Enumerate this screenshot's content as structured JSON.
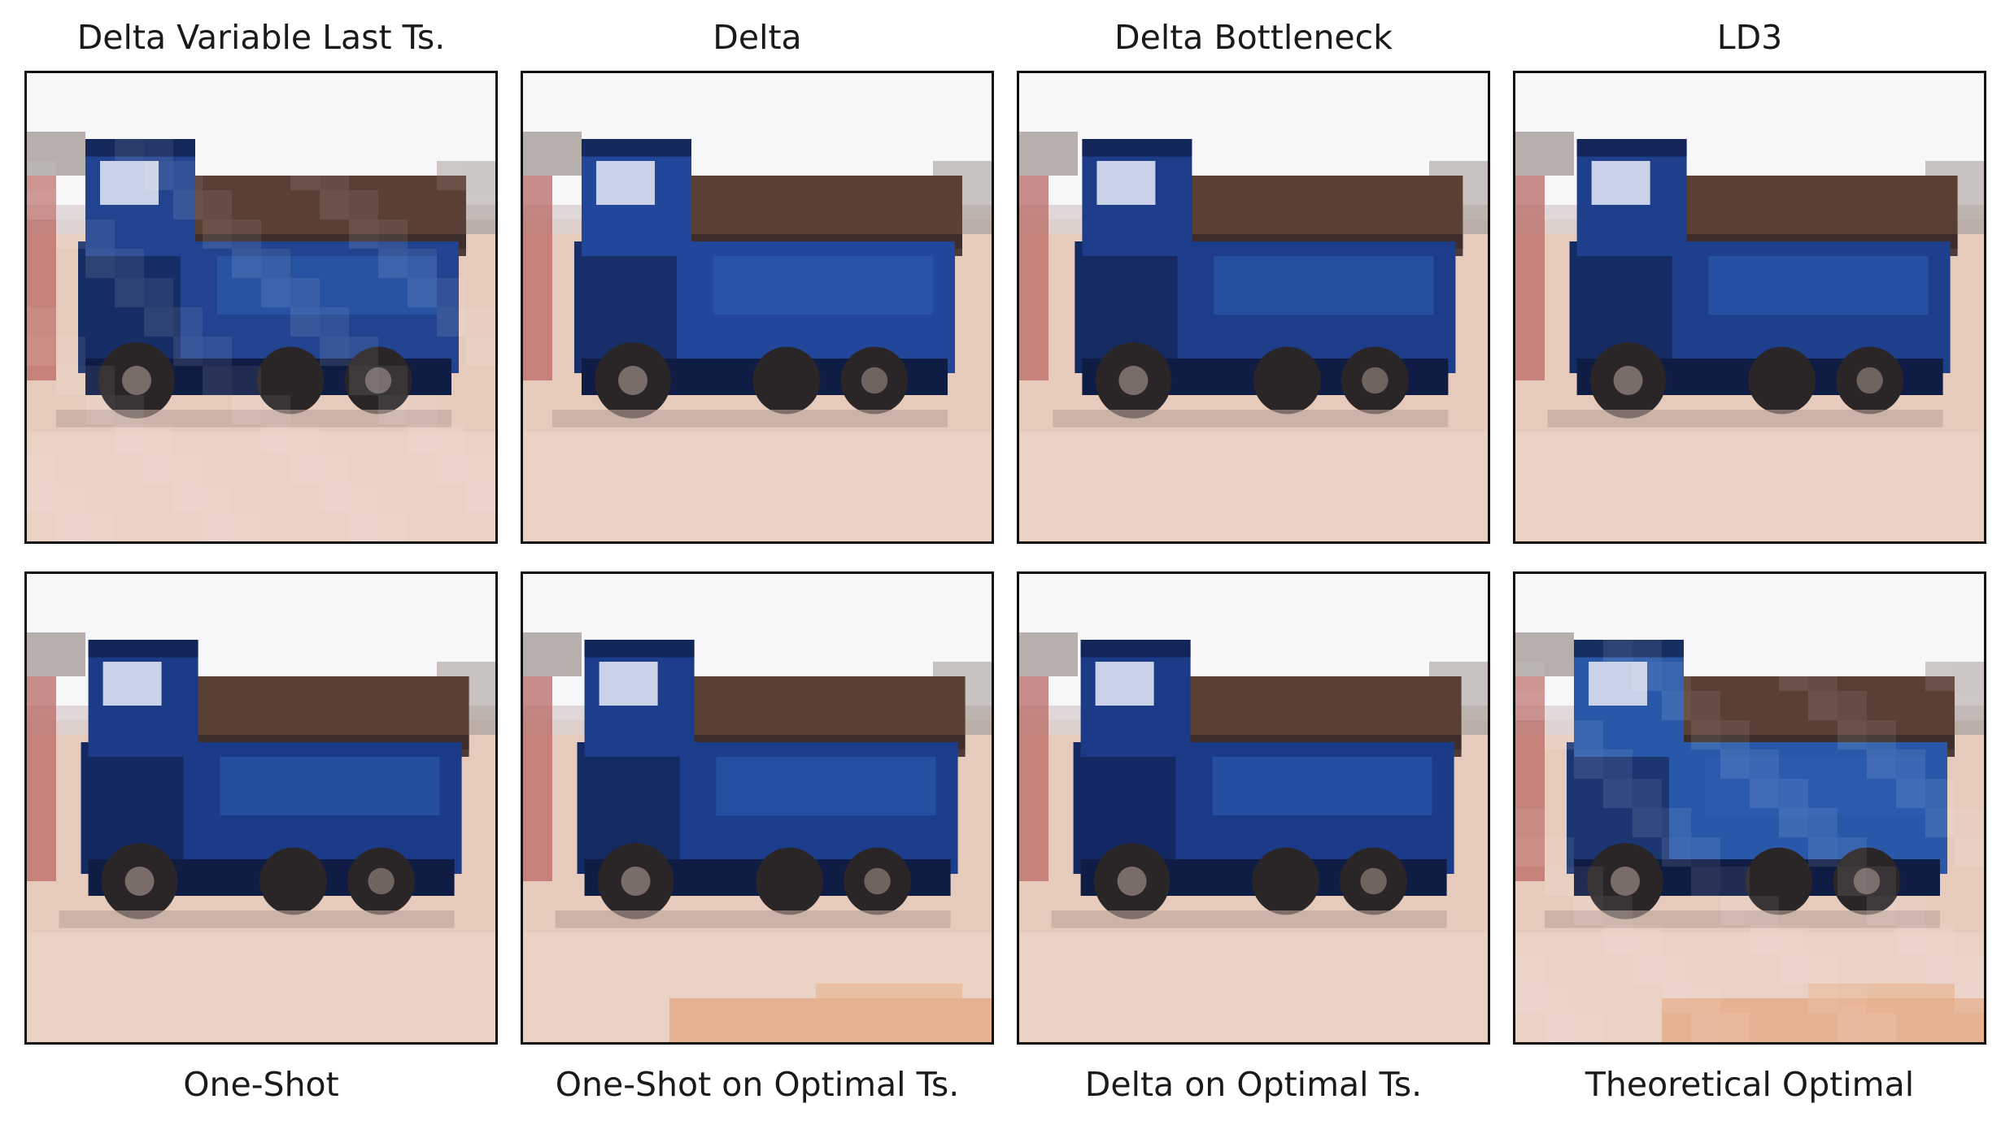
{
  "figure": {
    "panels": [
      {
        "caption": "Delta Variable Last Ts.",
        "variant": "a"
      },
      {
        "caption": "Delta",
        "variant": "b"
      },
      {
        "caption": "Delta Bottleneck",
        "variant": "c"
      },
      {
        "caption": "LD3",
        "variant": "d"
      },
      {
        "caption": "One-Shot",
        "variant": "e"
      },
      {
        "caption": "One-Shot on Optimal Ts.",
        "variant": "f"
      },
      {
        "caption": "Delta on Optimal Ts.",
        "variant": "g"
      },
      {
        "caption": "Theoretical Optimal",
        "variant": "h"
      }
    ]
  },
  "colors": {
    "sky": "#f7f7fa",
    "ground": "#e6cbbd",
    "truck_body": "#1f3f8f",
    "truck_dark": "#0f1c44",
    "tires": "#2a2526",
    "wall_red": "#b86a64",
    "cargo": "#5a3f35",
    "frame": "#111111",
    "text": "#1a1a1a"
  }
}
